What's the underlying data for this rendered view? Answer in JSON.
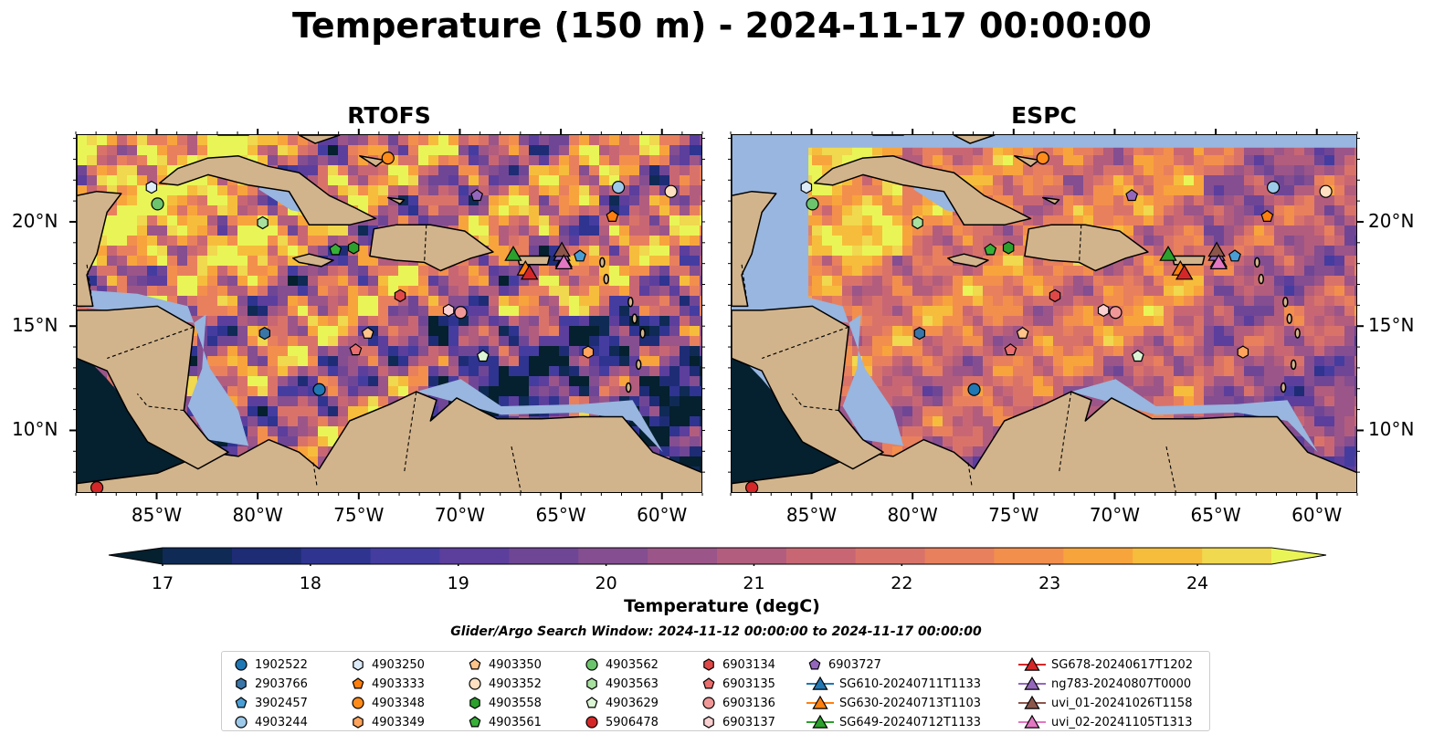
{
  "title": "Temperature (150 m) - 2024-11-17 00:00:00",
  "panels": [
    {
      "title": "RTOFS"
    },
    {
      "title": "ESPC"
    }
  ],
  "lat_ticks": [
    "20°N",
    "15°N",
    "10°N"
  ],
  "lon_ticks": [
    "85°W",
    "80°W",
    "75°W",
    "70°W",
    "65°W",
    "60°W"
  ],
  "colorbar": {
    "title": "Temperature (degC)",
    "ticks": [
      "17",
      "18",
      "19",
      "20",
      "21",
      "22",
      "23",
      "24"
    ],
    "min": 16.5,
    "max": 24.5,
    "step": 0.5,
    "colors": [
      "#05202f",
      "#0f2a55",
      "#1e2c75",
      "#2e3490",
      "#453ca0",
      "#5c3e9d",
      "#6f4696",
      "#844e90",
      "#9b5589",
      "#b25d7e",
      "#c86773",
      "#d9736a",
      "#e8805e",
      "#f38f4d",
      "#f8a43c",
      "#f6bd3c",
      "#f0d84f",
      "#e9f556"
    ]
  },
  "search_window": "Glider/Argo Search Window: 2024-11-12 00:00:00 to 2024-11-17 00:00:00",
  "legend": [
    {
      "label": "1902522",
      "marker": "circle",
      "color": "#1f77b4"
    },
    {
      "label": "2903766",
      "marker": "hexagon",
      "color": "#3a75a8"
    },
    {
      "label": "3902457",
      "marker": "pentagon",
      "color": "#4a9ed6"
    },
    {
      "label": "4903244",
      "marker": "circle",
      "color": "#9ecae9"
    },
    {
      "label": "4903250",
      "marker": "hexagon",
      "color": "#dcebf7"
    },
    {
      "label": "4903333",
      "marker": "pentagon",
      "color": "#ff7f0e"
    },
    {
      "label": "4903348",
      "marker": "circle",
      "color": "#ff8c1a"
    },
    {
      "label": "4903349",
      "marker": "hexagon",
      "color": "#ffa45c"
    },
    {
      "label": "4903350",
      "marker": "pentagon",
      "color": "#ffc48a"
    },
    {
      "label": "4903352",
      "marker": "circle",
      "color": "#ffe0c0"
    },
    {
      "label": "4903558",
      "marker": "hexagon",
      "color": "#2ca02c"
    },
    {
      "label": "4903561",
      "marker": "pentagon",
      "color": "#38b038"
    },
    {
      "label": "4903562",
      "marker": "circle",
      "color": "#6cc46c"
    },
    {
      "label": "4903563",
      "marker": "hexagon",
      "color": "#a8e0a0"
    },
    {
      "label": "4903629",
      "marker": "pentagon",
      "color": "#dcf5d4"
    },
    {
      "label": "5906478",
      "marker": "circle",
      "color": "#d62728"
    },
    {
      "label": "6903134",
      "marker": "hexagon",
      "color": "#e04848"
    },
    {
      "label": "6903135",
      "marker": "pentagon",
      "color": "#ea6e6e"
    },
    {
      "label": "6903136",
      "marker": "circle",
      "color": "#f09898"
    },
    {
      "label": "6903137",
      "marker": "hexagon",
      "color": "#fbd0d0"
    },
    {
      "label": "6903727",
      "marker": "pentagon",
      "color": "#9467bd"
    },
    {
      "label": "SG610-20240711T1133",
      "marker": "triangle",
      "color": "#1f77b4"
    },
    {
      "label": "SG630-20240713T1103",
      "marker": "triangle",
      "color": "#ff7f0e"
    },
    {
      "label": "SG649-20240712T1133",
      "marker": "triangle",
      "color": "#2ca02c"
    },
    {
      "label": "SG678-20240617T1202",
      "marker": "triangle",
      "color": "#d62728"
    },
    {
      "label": "ng783-20240807T0000",
      "marker": "triangle",
      "color": "#9467bd"
    },
    {
      "label": "uvi_01-20241026T1158",
      "marker": "triangle",
      "color": "#8c564b"
    },
    {
      "label": "uvi_02-20241105T1313",
      "marker": "triangle",
      "color": "#e377c2"
    }
  ],
  "chart_data": {
    "type": "heatmap",
    "title": "Temperature (150 m) - 2024-11-17 00:00:00",
    "colorbar_label": "Temperature (degC)",
    "zlim": [
      16.5,
      24.5
    ],
    "lon_range": [
      -89,
      -58
    ],
    "lat_range": [
      7,
      24.2
    ],
    "observations": [
      {
        "id": "1902522",
        "lon": -77,
        "lat": 12
      },
      {
        "id": "2903766",
        "lon": -79.7,
        "lat": 14.7
      },
      {
        "id": "3902457",
        "lon": -64.1,
        "lat": 18.4
      },
      {
        "id": "4903244",
        "lon": -62.2,
        "lat": 21.7
      },
      {
        "id": "4903250",
        "lon": -85.3,
        "lat": 21.7
      },
      {
        "id": "4903333",
        "lon": -62.5,
        "lat": 20.3
      },
      {
        "id": "4903348",
        "lon": -73.6,
        "lat": 23.1
      },
      {
        "id": "4903349",
        "lon": -63.7,
        "lat": 13.8
      },
      {
        "id": "4903350",
        "lon": -74.6,
        "lat": 14.7
      },
      {
        "id": "4903352",
        "lon": -59.6,
        "lat": 21.5
      },
      {
        "id": "4903558",
        "lon": -75.3,
        "lat": 18.8
      },
      {
        "id": "4903561",
        "lon": -76.2,
        "lat": 18.7
      },
      {
        "id": "4903562",
        "lon": -85,
        "lat": 20.9
      },
      {
        "id": "4903563",
        "lon": -79.8,
        "lat": 20
      },
      {
        "id": "4903629",
        "lon": -68.9,
        "lat": 13.6
      },
      {
        "id": "5906478",
        "lon": -88,
        "lat": 7.3
      },
      {
        "id": "6903134",
        "lon": -73,
        "lat": 16.5
      },
      {
        "id": "6903135",
        "lon": -75.2,
        "lat": 13.9
      },
      {
        "id": "6903136",
        "lon": -70,
        "lat": 15.7
      },
      {
        "id": "6903137",
        "lon": -70.6,
        "lat": 15.8
      },
      {
        "id": "6903727",
        "lon": -69.2,
        "lat": 21.3
      },
      {
        "id": "SG610-20240711T1133",
        "lon": -64.9,
        "lat": 18.2
      },
      {
        "id": "SG630-20240713T1103",
        "lon": -66.8,
        "lat": 17.8
      },
      {
        "id": "SG649-20240712T1133",
        "lon": -67.4,
        "lat": 18.5
      },
      {
        "id": "SG678-20240617T1202",
        "lon": -66.6,
        "lat": 17.6
      },
      {
        "id": "ng783-20240807T0000",
        "lon": -65,
        "lat": 18.5
      },
      {
        "id": "uvi_01-20241026T1158",
        "lon": -65,
        "lat": 18.7
      },
      {
        "id": "uvi_02-20241105T1313",
        "lon": -64.9,
        "lat": 18.1
      }
    ]
  }
}
